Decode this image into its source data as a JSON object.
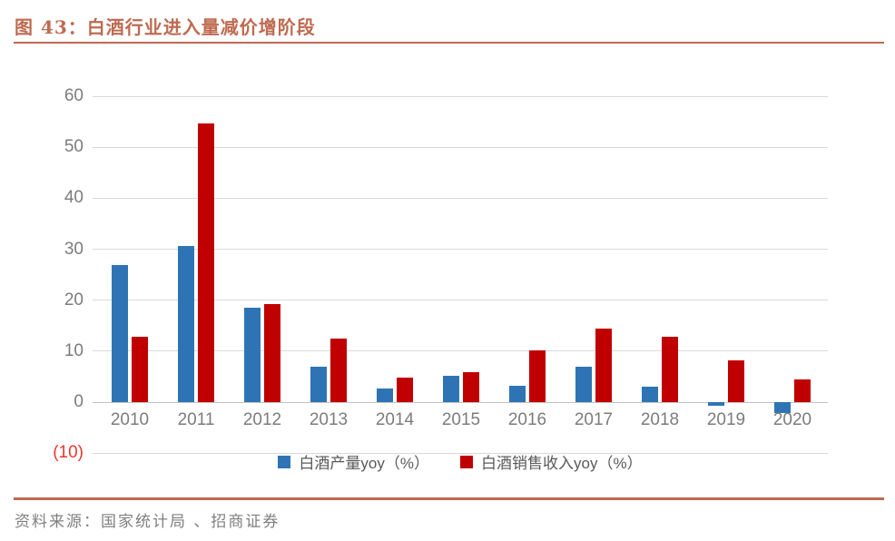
{
  "page": {
    "title": "图 43：白酒行业进入量减价增阶段",
    "source": "资料来源：国家统计局 、招商证券"
  },
  "colors": {
    "accent": "#BE6A50",
    "series_production": "#2E74B5",
    "series_revenue": "#C00000",
    "axis_text": "#7c7c7c",
    "legend_text": "#595959",
    "gridline": "#D9D9D9",
    "negative_tick": "#E8392F",
    "source_text": "#7F7F7F"
  },
  "chart_data": {
    "type": "bar",
    "title": "白酒行业进入量减价增阶段",
    "categories": [
      "2010",
      "2011",
      "2012",
      "2013",
      "2014",
      "2015",
      "2016",
      "2017",
      "2018",
      "2019",
      "2020"
    ],
    "series": [
      {
        "name": "白酒产量yoy（%）",
        "color": "#2E74B5",
        "values": [
          26.8,
          30.7,
          18.6,
          7.0,
          2.7,
          5.1,
          3.2,
          6.9,
          3.1,
          -0.8,
          -2.2
        ]
      },
      {
        "name": "白酒销售收入yoy（%）",
        "color": "#C00000",
        "values": [
          12.8,
          54.6,
          19.2,
          12.5,
          4.8,
          5.8,
          10.1,
          14.4,
          12.8,
          8.2,
          4.5
        ]
      }
    ],
    "ylim": [
      -10,
      60
    ],
    "yticks": [
      {
        "value": 60,
        "label": "60"
      },
      {
        "value": 50,
        "label": "50"
      },
      {
        "value": 40,
        "label": "40"
      },
      {
        "value": 30,
        "label": "30"
      },
      {
        "value": 20,
        "label": "20"
      },
      {
        "value": 10,
        "label": "10"
      },
      {
        "value": 0,
        "label": "0"
      },
      {
        "value": -10,
        "label": "(10)"
      }
    ],
    "grid": true,
    "legend_position": "bottom",
    "xlabel": "",
    "ylabel": ""
  }
}
